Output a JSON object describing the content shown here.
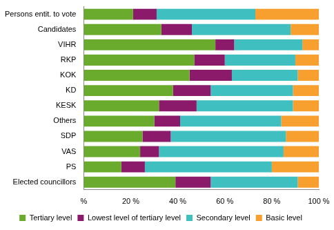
{
  "chart_data": {
    "type": "bar",
    "orientation": "horizontal",
    "stacked": true,
    "grid": false,
    "legend": "bottom",
    "categories": [
      "Persons entit. to vote",
      "Candidates",
      "VIHR",
      "RKP",
      "KOK",
      "KD",
      "KESK",
      "Others",
      "SDP",
      "VAS",
      "PS",
      "Elected councillors"
    ],
    "series": [
      {
        "name": "Tertiary level",
        "color": "#6aab2e",
        "values": [
          21,
          33,
          56,
          47,
          45,
          38,
          32,
          30,
          25,
          24,
          16,
          39
        ]
      },
      {
        "name": "Lowest level of tertiary level",
        "color": "#8b1a6b",
        "values": [
          10,
          13,
          8,
          13,
          18,
          16,
          16,
          11,
          12,
          8,
          10,
          15
        ]
      },
      {
        "name": "Secondary level",
        "color": "#3fbfbf",
        "values": [
          42,
          42,
          29,
          30,
          28,
          35,
          41,
          43,
          49,
          53,
          54,
          37
        ]
      },
      {
        "name": "Basic level",
        "color": "#f7a030",
        "values": [
          27,
          12,
          7,
          10,
          9,
          11,
          11,
          16,
          14,
          15,
          20,
          9
        ]
      }
    ],
    "xlim": [
      0,
      100
    ],
    "xticks": [
      {
        "value": 0,
        "label": "%"
      },
      {
        "value": 20,
        "label": "20 %"
      },
      {
        "value": 40,
        "label": "40 %"
      },
      {
        "value": 60,
        "label": "60 %"
      },
      {
        "value": 80,
        "label": "80 %"
      },
      {
        "value": 100,
        "label": "100 %"
      }
    ]
  }
}
